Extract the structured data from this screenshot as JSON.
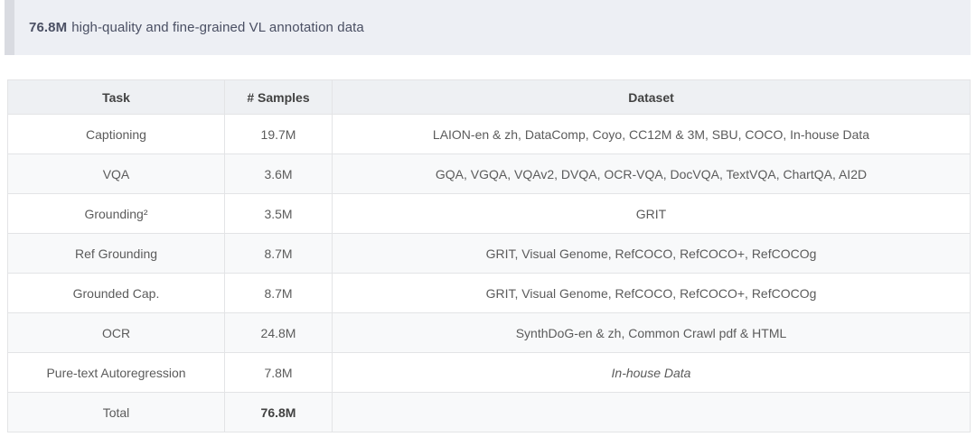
{
  "banner": {
    "highlight": "76.8M",
    "text": "high-quality and fine-grained VL annotation data"
  },
  "table": {
    "columns": {
      "task": "Task",
      "samples": "# Samples",
      "dataset": "Dataset"
    },
    "rows": [
      {
        "task": "Captioning",
        "samples": "19.7M",
        "dataset": "LAION-en & zh, DataComp, Coyo, CC12M & 3M, SBU, COCO, In-house Data"
      },
      {
        "task": "VQA",
        "samples": "3.6M",
        "dataset": "GQA, VGQA, VQAv2, DVQA, OCR-VQA, DocVQA, TextVQA, ChartQA, AI2D"
      },
      {
        "task": "Grounding²",
        "samples": "3.5M",
        "dataset": "GRIT"
      },
      {
        "task": "Ref Grounding",
        "samples": "8.7M",
        "dataset": "GRIT, Visual Genome, RefCOCO, RefCOCO+, RefCOCOg"
      },
      {
        "task": "Grounded Cap.",
        "samples": "8.7M",
        "dataset": "GRIT, Visual Genome, RefCOCO, RefCOCO+, RefCOCOg"
      },
      {
        "task": "OCR",
        "samples": "24.8M",
        "dataset": "SynthDoG-en & zh, Common Crawl pdf & HTML"
      },
      {
        "task": "Pure-text Autoregression",
        "samples": "7.8M",
        "dataset": "In-house Data"
      },
      {
        "task": "Total",
        "samples": "76.8M",
        "dataset": ""
      }
    ]
  },
  "colors": {
    "banner_bg": "#edeff4",
    "banner_bar": "#d9dbe1",
    "banner_text": "#4a4f63",
    "header_bg": "#eef0f3",
    "row_alt_bg": "#f8f9fa",
    "border": "#e3e4e6",
    "cell_text": "#5b5b5b"
  }
}
